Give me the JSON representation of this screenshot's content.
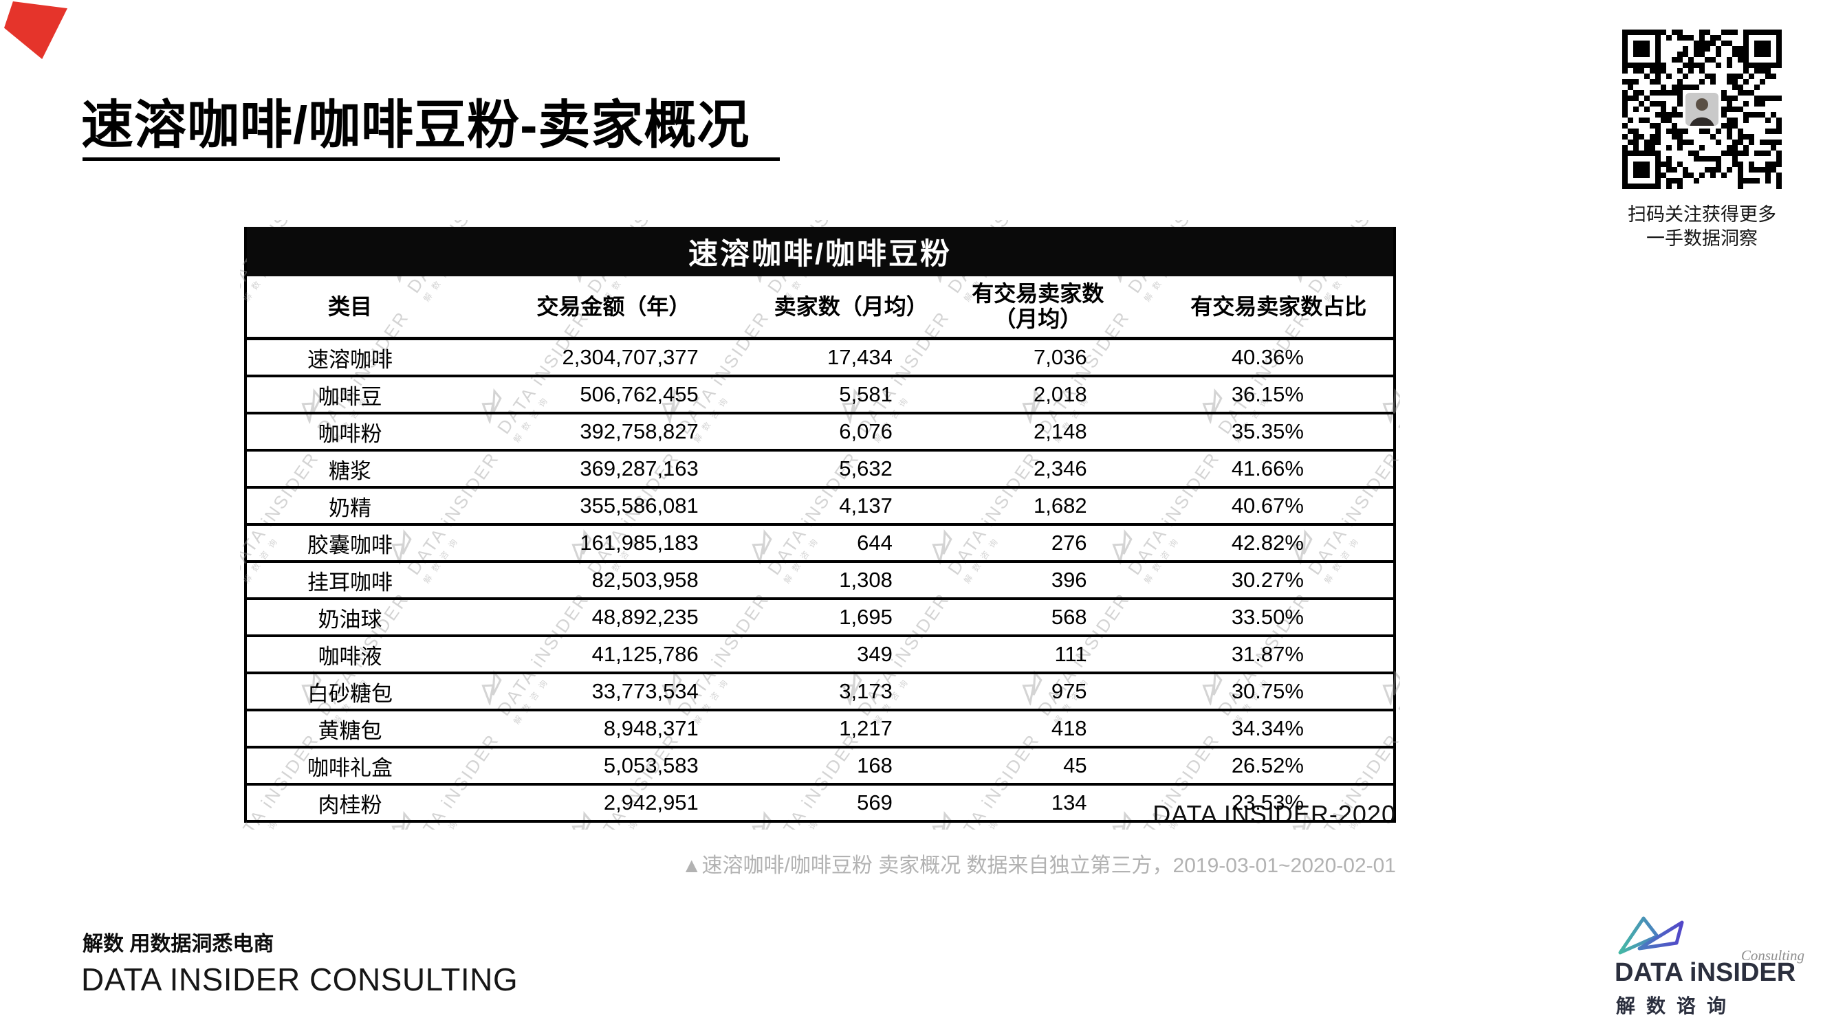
{
  "page": {
    "title": "速溶咖啡/咖啡豆粉-卖家概况"
  },
  "qr": {
    "caption_line1": "扫码关注获得更多",
    "caption_line2": "一手数据洞察"
  },
  "table": {
    "title": "速溶咖啡/咖啡豆粉",
    "columns": [
      {
        "label": "类目"
      },
      {
        "label": "交易金额（年）"
      },
      {
        "label": "卖家数（月均）"
      },
      {
        "label": "有交易卖家数",
        "label2": "（月均）"
      },
      {
        "label": "有交易卖家数占比"
      }
    ],
    "rows": [
      {
        "category": "速溶咖啡",
        "amount": "2,304,707,377",
        "sellers": "17,434",
        "active_sellers": "7,036",
        "active_ratio": "40.36%"
      },
      {
        "category": "咖啡豆",
        "amount": "506,762,455",
        "sellers": "5,581",
        "active_sellers": "2,018",
        "active_ratio": "36.15%"
      },
      {
        "category": "咖啡粉",
        "amount": "392,758,827",
        "sellers": "6,076",
        "active_sellers": "2,148",
        "active_ratio": "35.35%"
      },
      {
        "category": "糖浆",
        "amount": "369,287,163",
        "sellers": "5,632",
        "active_sellers": "2,346",
        "active_ratio": "41.66%"
      },
      {
        "category": "奶精",
        "amount": "355,586,081",
        "sellers": "4,137",
        "active_sellers": "1,682",
        "active_ratio": "40.67%"
      },
      {
        "category": "胶囊咖啡",
        "amount": "161,985,183",
        "sellers": "644",
        "active_sellers": "276",
        "active_ratio": "42.82%"
      },
      {
        "category": "挂耳咖啡",
        "amount": "82,503,958",
        "sellers": "1,308",
        "active_sellers": "396",
        "active_ratio": "30.27%"
      },
      {
        "category": "奶油球",
        "amount": "48,892,235",
        "sellers": "1,695",
        "active_sellers": "568",
        "active_ratio": "33.50%"
      },
      {
        "category": "咖啡液",
        "amount": "41,125,786",
        "sellers": "349",
        "active_sellers": "111",
        "active_ratio": "31.87%"
      },
      {
        "category": "白砂糖包",
        "amount": "33,773,534",
        "sellers": "3,173",
        "active_sellers": "975",
        "active_ratio": "30.75%"
      },
      {
        "category": "黄糖包",
        "amount": "8,948,371",
        "sellers": "1,217",
        "active_sellers": "418",
        "active_ratio": "34.34%"
      },
      {
        "category": "咖啡礼盒",
        "amount": "5,053,583",
        "sellers": "168",
        "active_sellers": "45",
        "active_ratio": "26.52%"
      },
      {
        "category": "肉桂粉",
        "amount": "2,942,951",
        "sellers": "569",
        "active_sellers": "134",
        "active_ratio": "23.53%"
      }
    ],
    "source_label": "DATA INSIDER-2020"
  },
  "caption": "▲速溶咖啡/咖啡豆粉 卖家概况 数据来自独立第三方，2019-03-01~2020-02-01",
  "footer": {
    "slogan": "解数 用数据洞悉电商",
    "company": "DATA INSIDER CONSULTING"
  },
  "logo": {
    "consulting": "Consulting",
    "brand": "DATA iNSIDER",
    "brand_cn": "解数谘询"
  },
  "watermark": {
    "text": "DATA iNSIDER",
    "subtext": "解数咨询"
  },
  "colors": {
    "accent_red": "#e5342b",
    "table_header_bg": "#0a0a0a",
    "caption_gray": "#b2b2b2",
    "logo_teal": "#45b8a5",
    "logo_purple": "#5246c8",
    "logo_navy": "#2b2f3e"
  }
}
